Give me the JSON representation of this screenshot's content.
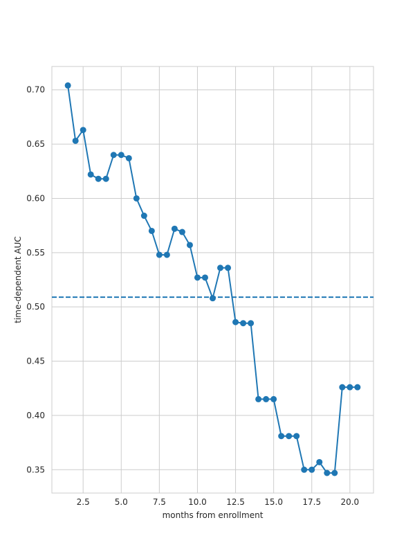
{
  "chart_data": {
    "type": "line",
    "title": "",
    "xlabel": "months from enrollment",
    "ylabel": "time-dependent AUC",
    "xlim": [
      0.45,
      21.55
    ],
    "ylim": [
      0.3285,
      0.7215
    ],
    "grid": true,
    "xticks": [
      2.5,
      5.0,
      7.5,
      10.0,
      12.5,
      15.0,
      17.5,
      20.0
    ],
    "xtick_labels": [
      "2.5",
      "5.0",
      "7.5",
      "10.0",
      "12.5",
      "15.0",
      "17.5",
      "20.0"
    ],
    "yticks": [
      0.35,
      0.4,
      0.45,
      0.5,
      0.55,
      0.6,
      0.65,
      0.7
    ],
    "ytick_labels": [
      "0.35",
      "0.40",
      "0.45",
      "0.50",
      "0.55",
      "0.60",
      "0.65",
      "0.70"
    ],
    "series": [
      {
        "color": "#1f77b4",
        "marker": "circle",
        "x": [
          1.5,
          2.0,
          2.5,
          3.0,
          3.5,
          4.0,
          4.5,
          5.0,
          5.5,
          6.0,
          6.5,
          7.0,
          7.5,
          8.0,
          8.5,
          9.0,
          9.5,
          10.0,
          10.5,
          11.0,
          11.5,
          12.0,
          12.5,
          13.0,
          13.5,
          14.0,
          14.5,
          15.0,
          15.5,
          16.0,
          16.5,
          17.0,
          17.5,
          18.0,
          18.5,
          19.0,
          19.5,
          20.0,
          20.5
        ],
        "values": [
          0.704,
          0.653,
          0.663,
          0.622,
          0.618,
          0.618,
          0.64,
          0.64,
          0.637,
          0.6,
          0.584,
          0.57,
          0.548,
          0.548,
          0.572,
          0.569,
          0.557,
          0.527,
          0.527,
          0.508,
          0.536,
          0.536,
          0.486,
          0.485,
          0.485,
          0.415,
          0.415,
          0.415,
          0.381,
          0.381,
          0.381,
          0.35,
          0.35,
          0.357,
          0.347,
          0.347,
          0.426,
          0.426,
          0.426
        ]
      }
    ],
    "reference_line": {
      "orientation": "horizontal",
      "value": 0.509,
      "style": "dashed",
      "color": "#1f77b4"
    }
  }
}
